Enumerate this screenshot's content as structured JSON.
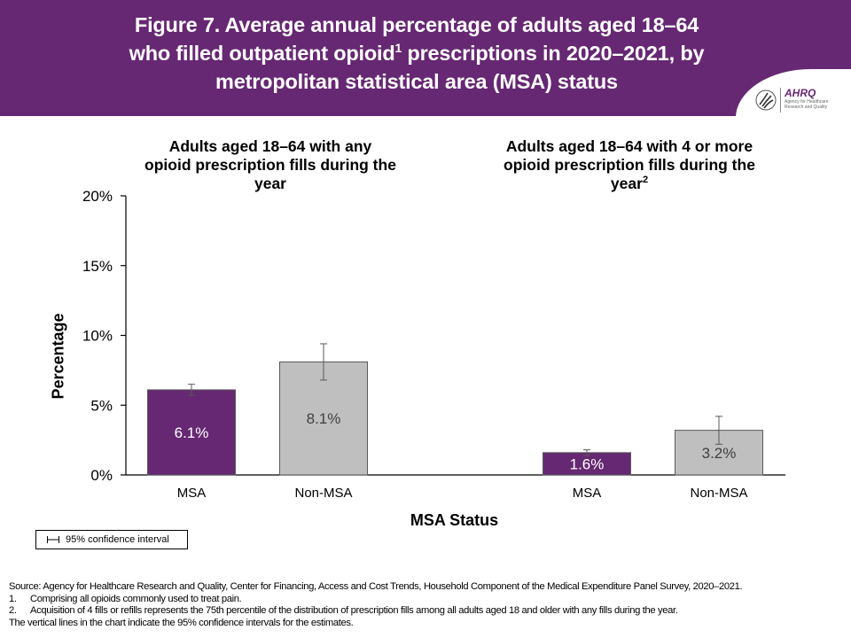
{
  "header": {
    "title_line1": "Figure 7. Average annual percentage of adults aged 18–64",
    "title_line2a": "who filled outpatient opioid",
    "title_line2_sup": "1",
    "title_line2b": " prescriptions in 2020–2021, by",
    "title_line3": "metropolitan statistical area (MSA) status",
    "background_color": "#662872",
    "logo": {
      "name": "AHRQ",
      "subtitle": "Agency for Healthcare Research and Quality"
    }
  },
  "chart_data": {
    "type": "bar",
    "title": "Figure 7. Average annual percentage of adults aged 18–64 who filled outpatient opioid prescriptions in 2020–2021, by metropolitan statistical area (MSA) status",
    "xlabel": "MSA Status",
    "ylabel": "Percentage",
    "ylim": [
      0,
      20
    ],
    "yticks": [
      "0%",
      "5%",
      "10%",
      "15%",
      "20%"
    ],
    "ytick_values": [
      0,
      5,
      10,
      15,
      20
    ],
    "grid": false,
    "legend": {
      "label": "95% confidence interval",
      "placement": "bottom-left"
    },
    "colors": {
      "MSA": "#662872",
      "Non-MSA": "#bfbfbf"
    },
    "panels": [
      {
        "title": "Adults aged 18–64 with any opioid prescription fills during the year",
        "title_line1": "Adults aged 18–64 with any",
        "title_line2": "opioid prescription fills during the",
        "title_line3": "year",
        "title_sup": "",
        "categories": [
          "MSA",
          "Non-MSA"
        ],
        "values": [
          6.1,
          8.1
        ],
        "labels": [
          "6.1%",
          "8.1%"
        ],
        "ci_lower": [
          5.7,
          6.8
        ],
        "ci_upper": [
          6.5,
          9.4
        ]
      },
      {
        "title": "Adults aged 18–64 with 4 or more opioid prescription fills during the year",
        "title_line1": "Adults aged 18–64 with 4 or more",
        "title_line2": "opioid prescription fills during the",
        "title_line3": "year",
        "title_sup": "2",
        "categories": [
          "MSA",
          "Non-MSA"
        ],
        "values": [
          1.6,
          3.2
        ],
        "labels": [
          "1.6%",
          "3.2%"
        ],
        "ci_lower": [
          1.4,
          2.2
        ],
        "ci_upper": [
          1.8,
          4.2
        ]
      }
    ]
  },
  "footnotes": {
    "source": "Source: Agency for Healthcare Research and Quality, Center for Financing, Access and Cost Trends, Household Component of the Medical Expenditure Panel Survey, 2020–2021.",
    "note1_num": "1.",
    "note1": "Comprising all opioids commonly used to treat pain.",
    "note2_num": "2.",
    "note2": "Acquisition of 4 fills or refills represents the 75th percentile of the distribution of prescription fills among all adults aged 18 and older with any fills during the year.",
    "note3": "The vertical lines in the chart indicate the 95% confidence intervals for the estimates."
  }
}
